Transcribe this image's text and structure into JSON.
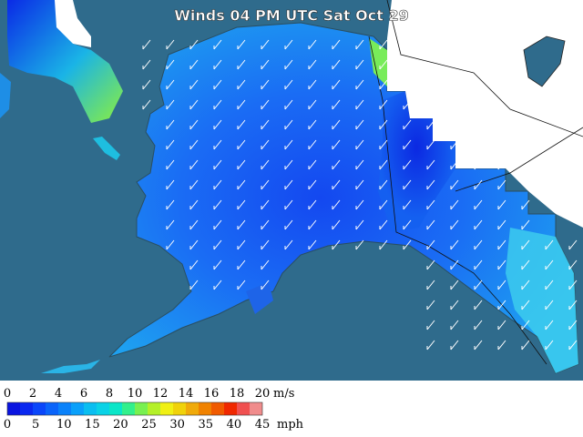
{
  "title": "Winds 04 PM UTC Sat Oct 29",
  "legend": {
    "ms_labels": [
      0,
      2,
      4,
      6,
      8,
      10,
      12,
      14,
      16,
      18,
      20
    ],
    "ms_unit": "m/s",
    "mph_labels": [
      0,
      5,
      10,
      15,
      20,
      25,
      30,
      35,
      40,
      45
    ],
    "mph_unit": "mph",
    "colors": [
      "#0a14e0",
      "#0a28f0",
      "#0a46fa",
      "#0a64fa",
      "#0a82fa",
      "#0aa0fa",
      "#0abef0",
      "#0ad2e6",
      "#0ae6c8",
      "#32f08c",
      "#78f050",
      "#b4f028",
      "#f0f014",
      "#f0d20a",
      "#f0aa0a",
      "#f08200",
      "#f05a00",
      "#f02800",
      "#f05050",
      "#f08c8c"
    ]
  }
}
